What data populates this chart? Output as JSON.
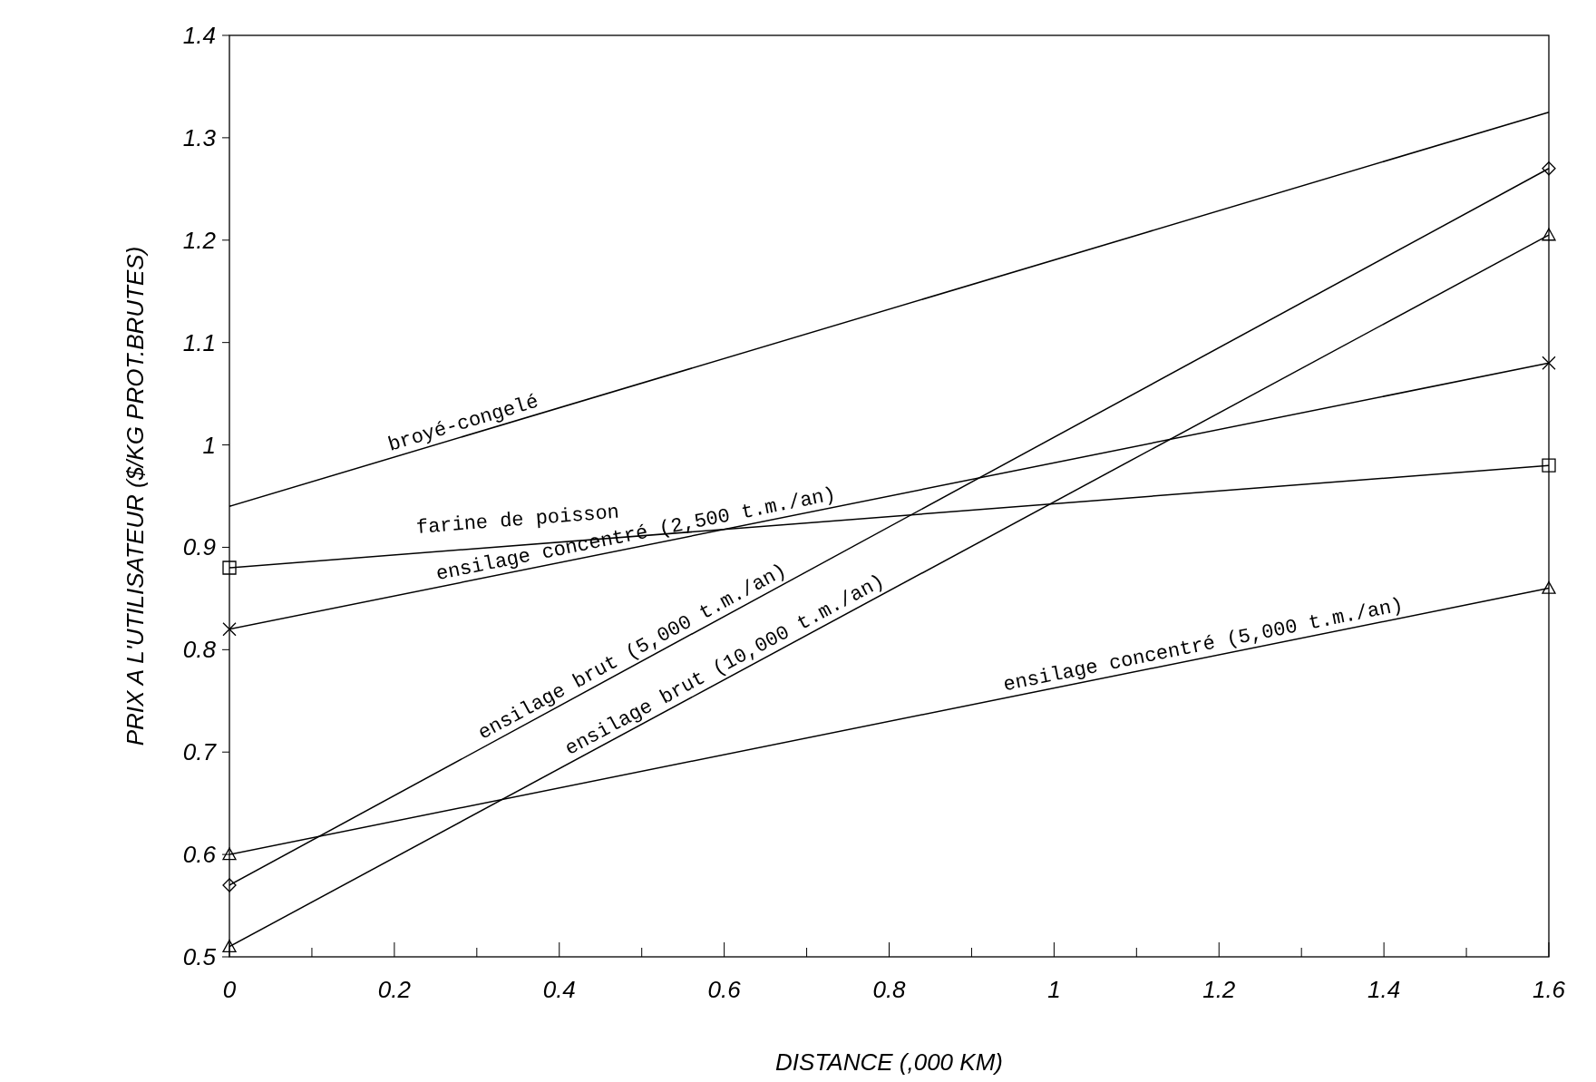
{
  "chart_data": {
    "type": "line",
    "xlabel": "DISTANCE (,000 KM)",
    "ylabel": "PRIX A L'UTILISATEUR ($/KG PROT.BRUTES)",
    "x": [
      0,
      1.6
    ],
    "series": [
      {
        "name": "broyé-congelé",
        "color": "#000000",
        "marker": "none",
        "values": [
          0.94,
          1.325
        ]
      },
      {
        "name": "farine de poisson",
        "color": "#000000",
        "marker": "square",
        "values": [
          0.88,
          0.98
        ]
      },
      {
        "name": "ensilage concentré (2,500 t.m./an)",
        "color": "#000000",
        "marker": "cross",
        "values": [
          0.82,
          1.08
        ]
      },
      {
        "name": "ensilage brut (5,000 t.m./an)",
        "color": "#000000",
        "marker": "diamond",
        "values": [
          0.57,
          1.27
        ]
      },
      {
        "name": "ensilage brut (10,000 t.m./an)",
        "color": "#000000",
        "marker": "triangle",
        "values": [
          0.51,
          1.205
        ]
      },
      {
        "name": "ensilage concentré (5,000 t.m./an)",
        "color": "#000000",
        "marker": "triangle",
        "values": [
          0.6,
          0.86
        ]
      }
    ],
    "xlim": [
      0,
      1.6
    ],
    "xticks": [
      0,
      {
        "value": 0.1,
        "label": null
      },
      0.2,
      {
        "value": 0.3,
        "label": null
      },
      0.4,
      {
        "value": 0.5,
        "label": null
      },
      0.6,
      {
        "value": 0.7,
        "label": null
      },
      0.8,
      {
        "value": 0.9,
        "label": null
      },
      1,
      {
        "value": 1.1,
        "label": null
      },
      1.2,
      {
        "value": 1.3,
        "label": null
      },
      1.4,
      {
        "value": 1.5,
        "label": null
      },
      1.6
    ],
    "ylim": [
      0.5,
      1.4
    ],
    "yticks": [
      0.5,
      0.6,
      0.7,
      0.8,
      0.9,
      1,
      1.1,
      1.2,
      1.3,
      1.4
    ],
    "grid": false,
    "line_style": "solid"
  }
}
